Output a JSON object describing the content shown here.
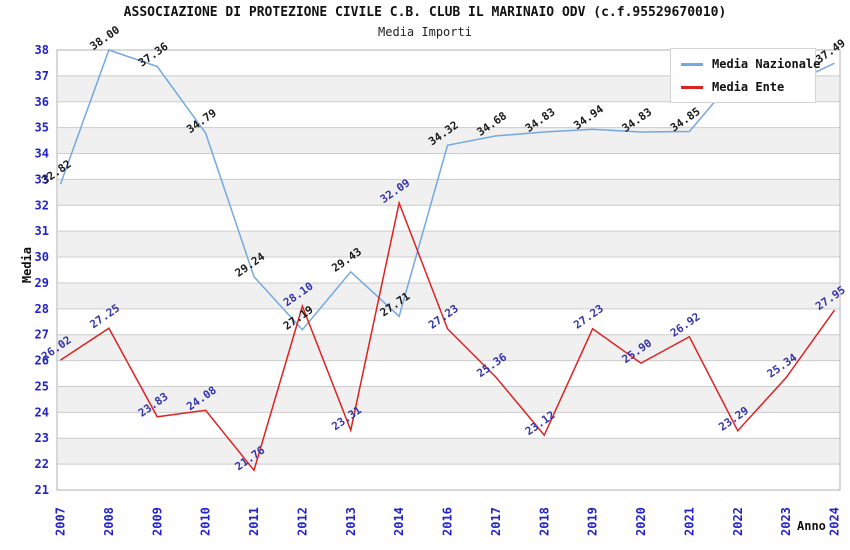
{
  "header": {
    "title": "ASSOCIAZIONE DI PROTEZIONE CIVILE C.B. CLUB IL MARINAIO ODV (c.f.95529670010)",
    "subtitle": "Media Importi"
  },
  "axes": {
    "y_title": "Media",
    "x_title": "Anno",
    "y_ticks": [
      21,
      22,
      23,
      24,
      25,
      26,
      27,
      28,
      29,
      30,
      31,
      32,
      33,
      34,
      35,
      36,
      37,
      38
    ],
    "tick_color": "#2222cc"
  },
  "legend": {
    "items": [
      {
        "label": "Media Nazionale",
        "color": "#74a9e0"
      },
      {
        "label": "Media Ente",
        "color": "#dd2222"
      }
    ]
  },
  "chart_data": {
    "type": "line",
    "title": "ASSOCIAZIONE DI PROTEZIONE CIVILE C.B. CLUB IL MARINAIO ODV (c.f.95529670010)",
    "subtitle": "Media Importi",
    "xlabel": "Anno",
    "ylabel": "Media",
    "ylim": [
      21,
      38
    ],
    "grid": "horizontal",
    "banding": true,
    "legend_position": "top-right",
    "categories": [
      "2007",
      "2008",
      "2009",
      "2010",
      "2011",
      "2012",
      "2013",
      "2014",
      "2016",
      "2017",
      "2018",
      "2019",
      "2020",
      "2021",
      "2022",
      "2023",
      "2024"
    ],
    "series": [
      {
        "name": "Media Nazionale",
        "color": "#74a9e0",
        "label_color": "#1a1a1a",
        "values": [
          32.82,
          38.0,
          37.36,
          34.79,
          29.24,
          27.19,
          29.43,
          27.71,
          34.32,
          34.68,
          34.83,
          34.94,
          34.83,
          34.85,
          37.05,
          36.6,
          37.49
        ],
        "labels": [
          "32.82",
          "38.00",
          "37.36",
          "34.79",
          "29.24",
          "27.19",
          "29.43",
          "27.71",
          "34.32",
          "34.68",
          "34.83",
          "34.94",
          "34.83",
          "34.85",
          "37.05",
          "",
          "37.49"
        ]
      },
      {
        "name": "Media Ente",
        "color": "#dd2222",
        "label_color": "#3434aa",
        "values": [
          26.02,
          27.25,
          23.83,
          24.08,
          21.76,
          28.1,
          23.31,
          32.09,
          27.23,
          25.36,
          23.12,
          27.23,
          25.9,
          26.92,
          23.29,
          25.34,
          27.95
        ],
        "labels": [
          "26.02",
          "27.25",
          "23.83",
          "24.08",
          "21.76",
          "28.10",
          "23.31",
          "32.09",
          "27.23",
          "25.36",
          "23.12",
          "27.23",
          "25.90",
          "26.92",
          "23.29",
          "25.34",
          "27.95"
        ]
      }
    ]
  },
  "colors": {
    "band": "#f0f0f0",
    "gridline": "#cccccc",
    "frame": "#b0b0b0",
    "background": "#ffffff"
  }
}
